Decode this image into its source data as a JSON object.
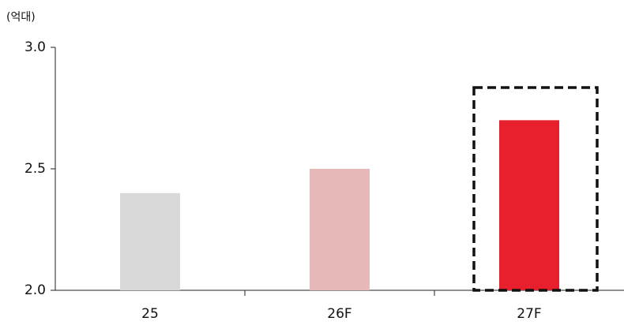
{
  "chart_data": {
    "type": "bar",
    "y_label": "(억대)",
    "categories": [
      "25",
      "26F",
      "27F"
    ],
    "values": [
      2.4,
      2.5,
      2.7
    ],
    "colors": [
      "#d9d9d9",
      "#e6b8b7",
      "#e8202e"
    ],
    "ylim": [
      2,
      3
    ],
    "yticks": [
      {
        "value": 2,
        "label": "2.0"
      },
      2.5,
      {
        "value": 3,
        "label": "3.0"
      }
    ],
    "grid": false
  }
}
